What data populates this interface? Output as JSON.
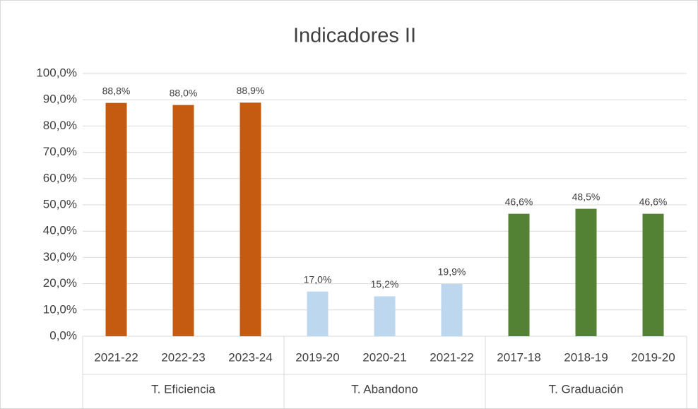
{
  "chart_data": {
    "type": "bar",
    "title": "Indicadores II",
    "groups": [
      {
        "label": "T. Eficiencia",
        "color": "#c55a11",
        "categories": [
          "2021-22",
          "2022-23",
          "2023-24"
        ],
        "values": [
          88.8,
          88.0,
          88.9
        ],
        "value_labels": [
          "88,8%",
          "88,0%",
          "88,9%"
        ]
      },
      {
        "label": "T. Abandono",
        "color": "#bdd7ee",
        "categories": [
          "2019-20",
          "2020-21",
          "2021-22"
        ],
        "values": [
          17.0,
          15.2,
          19.9
        ],
        "value_labels": [
          "17,0%",
          "15,2%",
          "19,9%"
        ]
      },
      {
        "label": "T. Graduación",
        "color": "#548235",
        "categories": [
          "2017-18",
          "2018-19",
          "2019-20"
        ],
        "values": [
          46.6,
          48.5,
          46.6
        ],
        "value_labels": [
          "46,6%",
          "48,5%",
          "46,6%"
        ]
      }
    ],
    "ylim": [
      0,
      100
    ],
    "yticks": [
      {
        "value": 0,
        "label": "0,0%"
      },
      {
        "value": 10,
        "label": "10,0%"
      },
      {
        "value": 20,
        "label": "20,0%"
      },
      {
        "value": 30,
        "label": "30,0%"
      },
      {
        "value": 40,
        "label": "40,0%"
      },
      {
        "value": 50,
        "label": "50,0%"
      },
      {
        "value": 60,
        "label": "60,0%"
      },
      {
        "value": 70,
        "label": "70,0%"
      },
      {
        "value": 80,
        "label": "80,0%"
      },
      {
        "value": 90,
        "label": "90,0%"
      },
      {
        "value": 100,
        "label": "100,0%"
      }
    ],
    "grid": true
  }
}
